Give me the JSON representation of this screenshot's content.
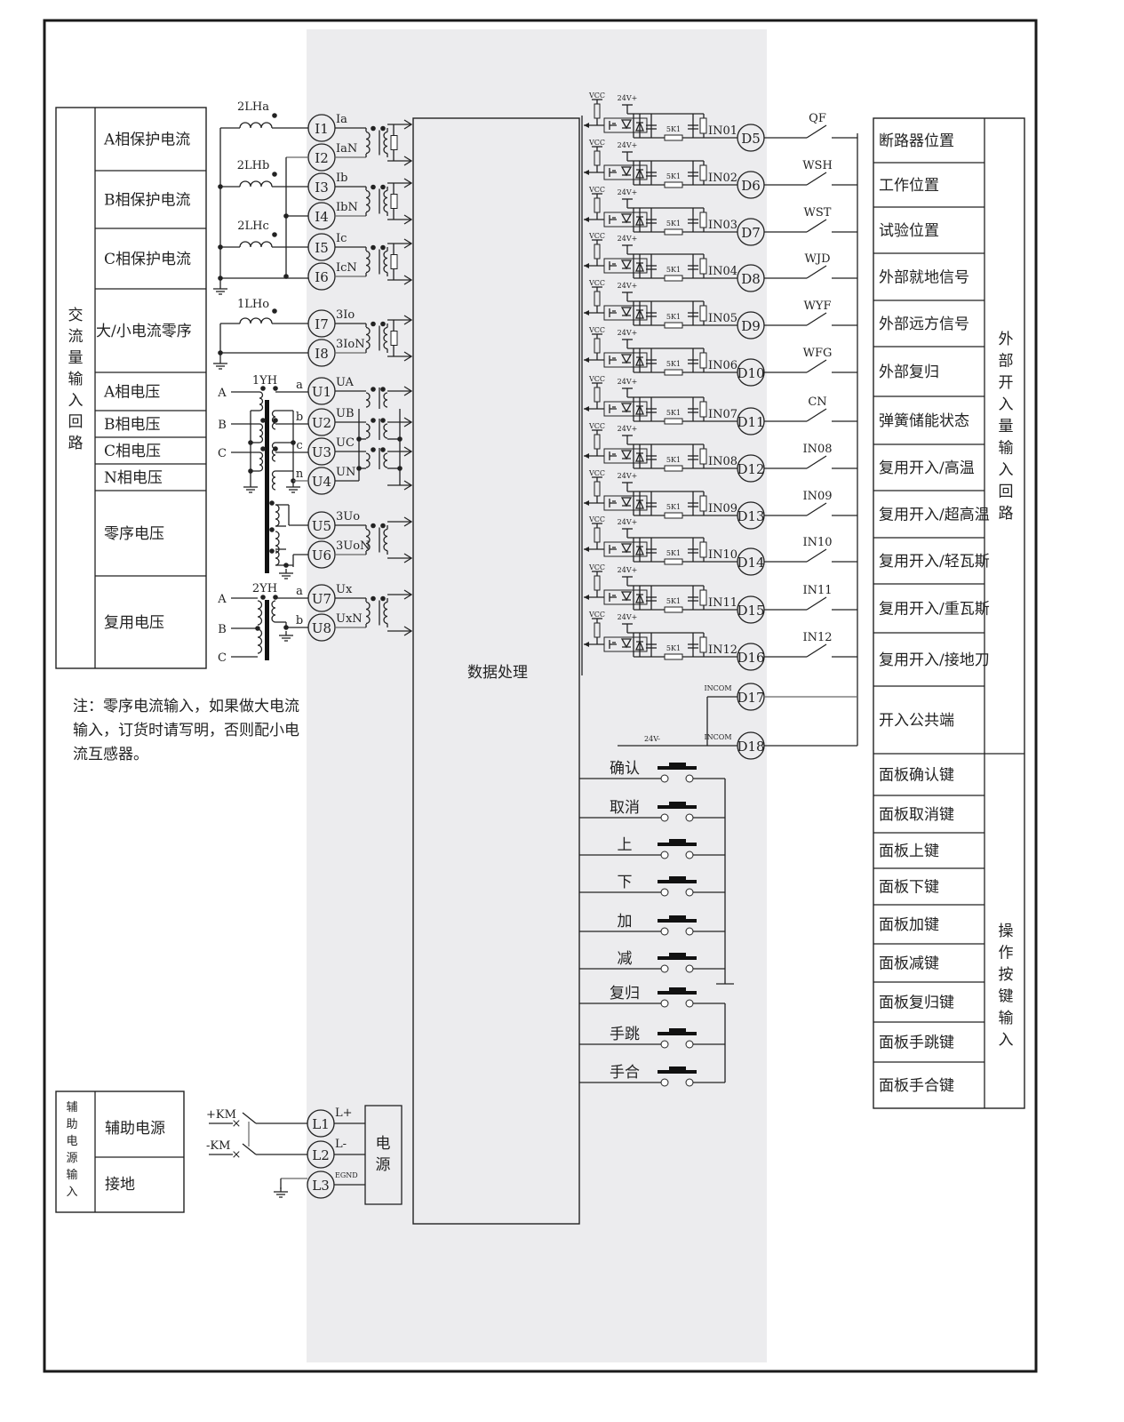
{
  "colors": {
    "border": "#1a1a1a",
    "panel_shade": "#ececee",
    "line": "#222222"
  },
  "center": {
    "label": "数据处理"
  },
  "ac_input": {
    "group_label": "交流量输入回路",
    "rows": [
      "A相保护电流",
      "B相保护电流",
      "C相保护电流",
      "大/小电流零序",
      "A相电压",
      "B相电压",
      "C相电压",
      "N相电压",
      "零序电压",
      "复用电压"
    ],
    "ct_labels": [
      "2LHa",
      "2LHb",
      "2LHc",
      "1LHo"
    ],
    "current_terminals": [
      {
        "id": "I1",
        "signal": "Ia"
      },
      {
        "id": "I2",
        "signal": "IaN"
      },
      {
        "id": "I3",
        "signal": "Ib"
      },
      {
        "id": "I4",
        "signal": "IbN"
      },
      {
        "id": "I5",
        "signal": "Ic"
      },
      {
        "id": "I6",
        "signal": "IcN"
      },
      {
        "id": "I7",
        "signal": "3Io"
      },
      {
        "id": "I8",
        "signal": "3IoN"
      }
    ],
    "vt_labels": [
      "1YH",
      "2YH"
    ],
    "phase_labels": [
      "A",
      "B",
      "C"
    ],
    "secondary_labels": [
      "a",
      "b",
      "c",
      "n"
    ],
    "secondary_labels_2": [
      "a",
      "b"
    ],
    "voltage_terminals": [
      {
        "id": "U1",
        "signal": "UA"
      },
      {
        "id": "U2",
        "signal": "UB"
      },
      {
        "id": "U3",
        "signal": "UC"
      },
      {
        "id": "U4",
        "signal": "UN"
      },
      {
        "id": "U5",
        "signal": "3Uo"
      },
      {
        "id": "U6",
        "signal": "3UoN"
      },
      {
        "id": "U7",
        "signal": "Ux"
      },
      {
        "id": "U8",
        "signal": "UxN"
      }
    ]
  },
  "note": [
    "注：零序电流输入，如果做大电流",
    "输入，订货时请写明，否则配小电",
    "流互感器。"
  ],
  "digital_inputs": {
    "vcc_label": "VCC",
    "supply_label": "24V+",
    "resistor_label": "5K1",
    "channels": [
      {
        "input": "IN01",
        "terminal": "D5",
        "contact": "QF"
      },
      {
        "input": "IN02",
        "terminal": "D6",
        "contact": "WSH"
      },
      {
        "input": "IN03",
        "terminal": "D7",
        "contact": "WST"
      },
      {
        "input": "IN04",
        "terminal": "D8",
        "contact": "WJD"
      },
      {
        "input": "IN05",
        "terminal": "D9",
        "contact": "WYF"
      },
      {
        "input": "IN06",
        "terminal": "D10",
        "contact": "WFG"
      },
      {
        "input": "IN07",
        "terminal": "D11",
        "contact": "CN"
      },
      {
        "input": "IN08",
        "terminal": "D12",
        "contact": "IN08"
      },
      {
        "input": "IN09",
        "terminal": "D13",
        "contact": "IN09"
      },
      {
        "input": "IN10",
        "terminal": "D14",
        "contact": "IN10"
      },
      {
        "input": "IN11",
        "terminal": "D15",
        "contact": "IN11"
      },
      {
        "input": "IN12",
        "terminal": "D16",
        "contact": "IN12"
      }
    ],
    "common": [
      {
        "label": "INCOM",
        "terminal": "D17"
      },
      {
        "label": "INCOM",
        "terminal": "D18"
      }
    ],
    "minus_label": "24V-"
  },
  "external_inputs": {
    "group_label": "外部开入量输入回路",
    "rows": [
      "断路器位置",
      "工作位置",
      "试验位置",
      "外部就地信号",
      "外部远方信号",
      "外部复归",
      "弹簧储能状态",
      "复用开入/高温",
      "复用开入/超高温",
      "复用开入/轻瓦斯",
      "复用开入/重瓦斯",
      "复用开入/接地刀",
      "开入公共端"
    ]
  },
  "buttons": {
    "labels": [
      "确认",
      "取消",
      "上",
      "下",
      "加",
      "减",
      "复归",
      "手跳",
      "手合"
    ]
  },
  "key_inputs": {
    "group_label": "操作按键输入",
    "rows": [
      "面板确认键",
      "面板取消键",
      "面板上键",
      "面板下键",
      "面板加键",
      "面板减键",
      "面板复归键",
      "面板手跳键",
      "面板手合键"
    ]
  },
  "aux_power": {
    "group_label": "辅助电源输入",
    "rows": [
      "辅助电源",
      "接地"
    ],
    "supply_labels": [
      "+KM",
      "-KM"
    ],
    "terminals": [
      {
        "id": "L1",
        "signal": "L+"
      },
      {
        "id": "L2",
        "signal": "L-"
      },
      {
        "id": "L3",
        "signal": "EGND"
      }
    ],
    "psu_label": "电源"
  }
}
